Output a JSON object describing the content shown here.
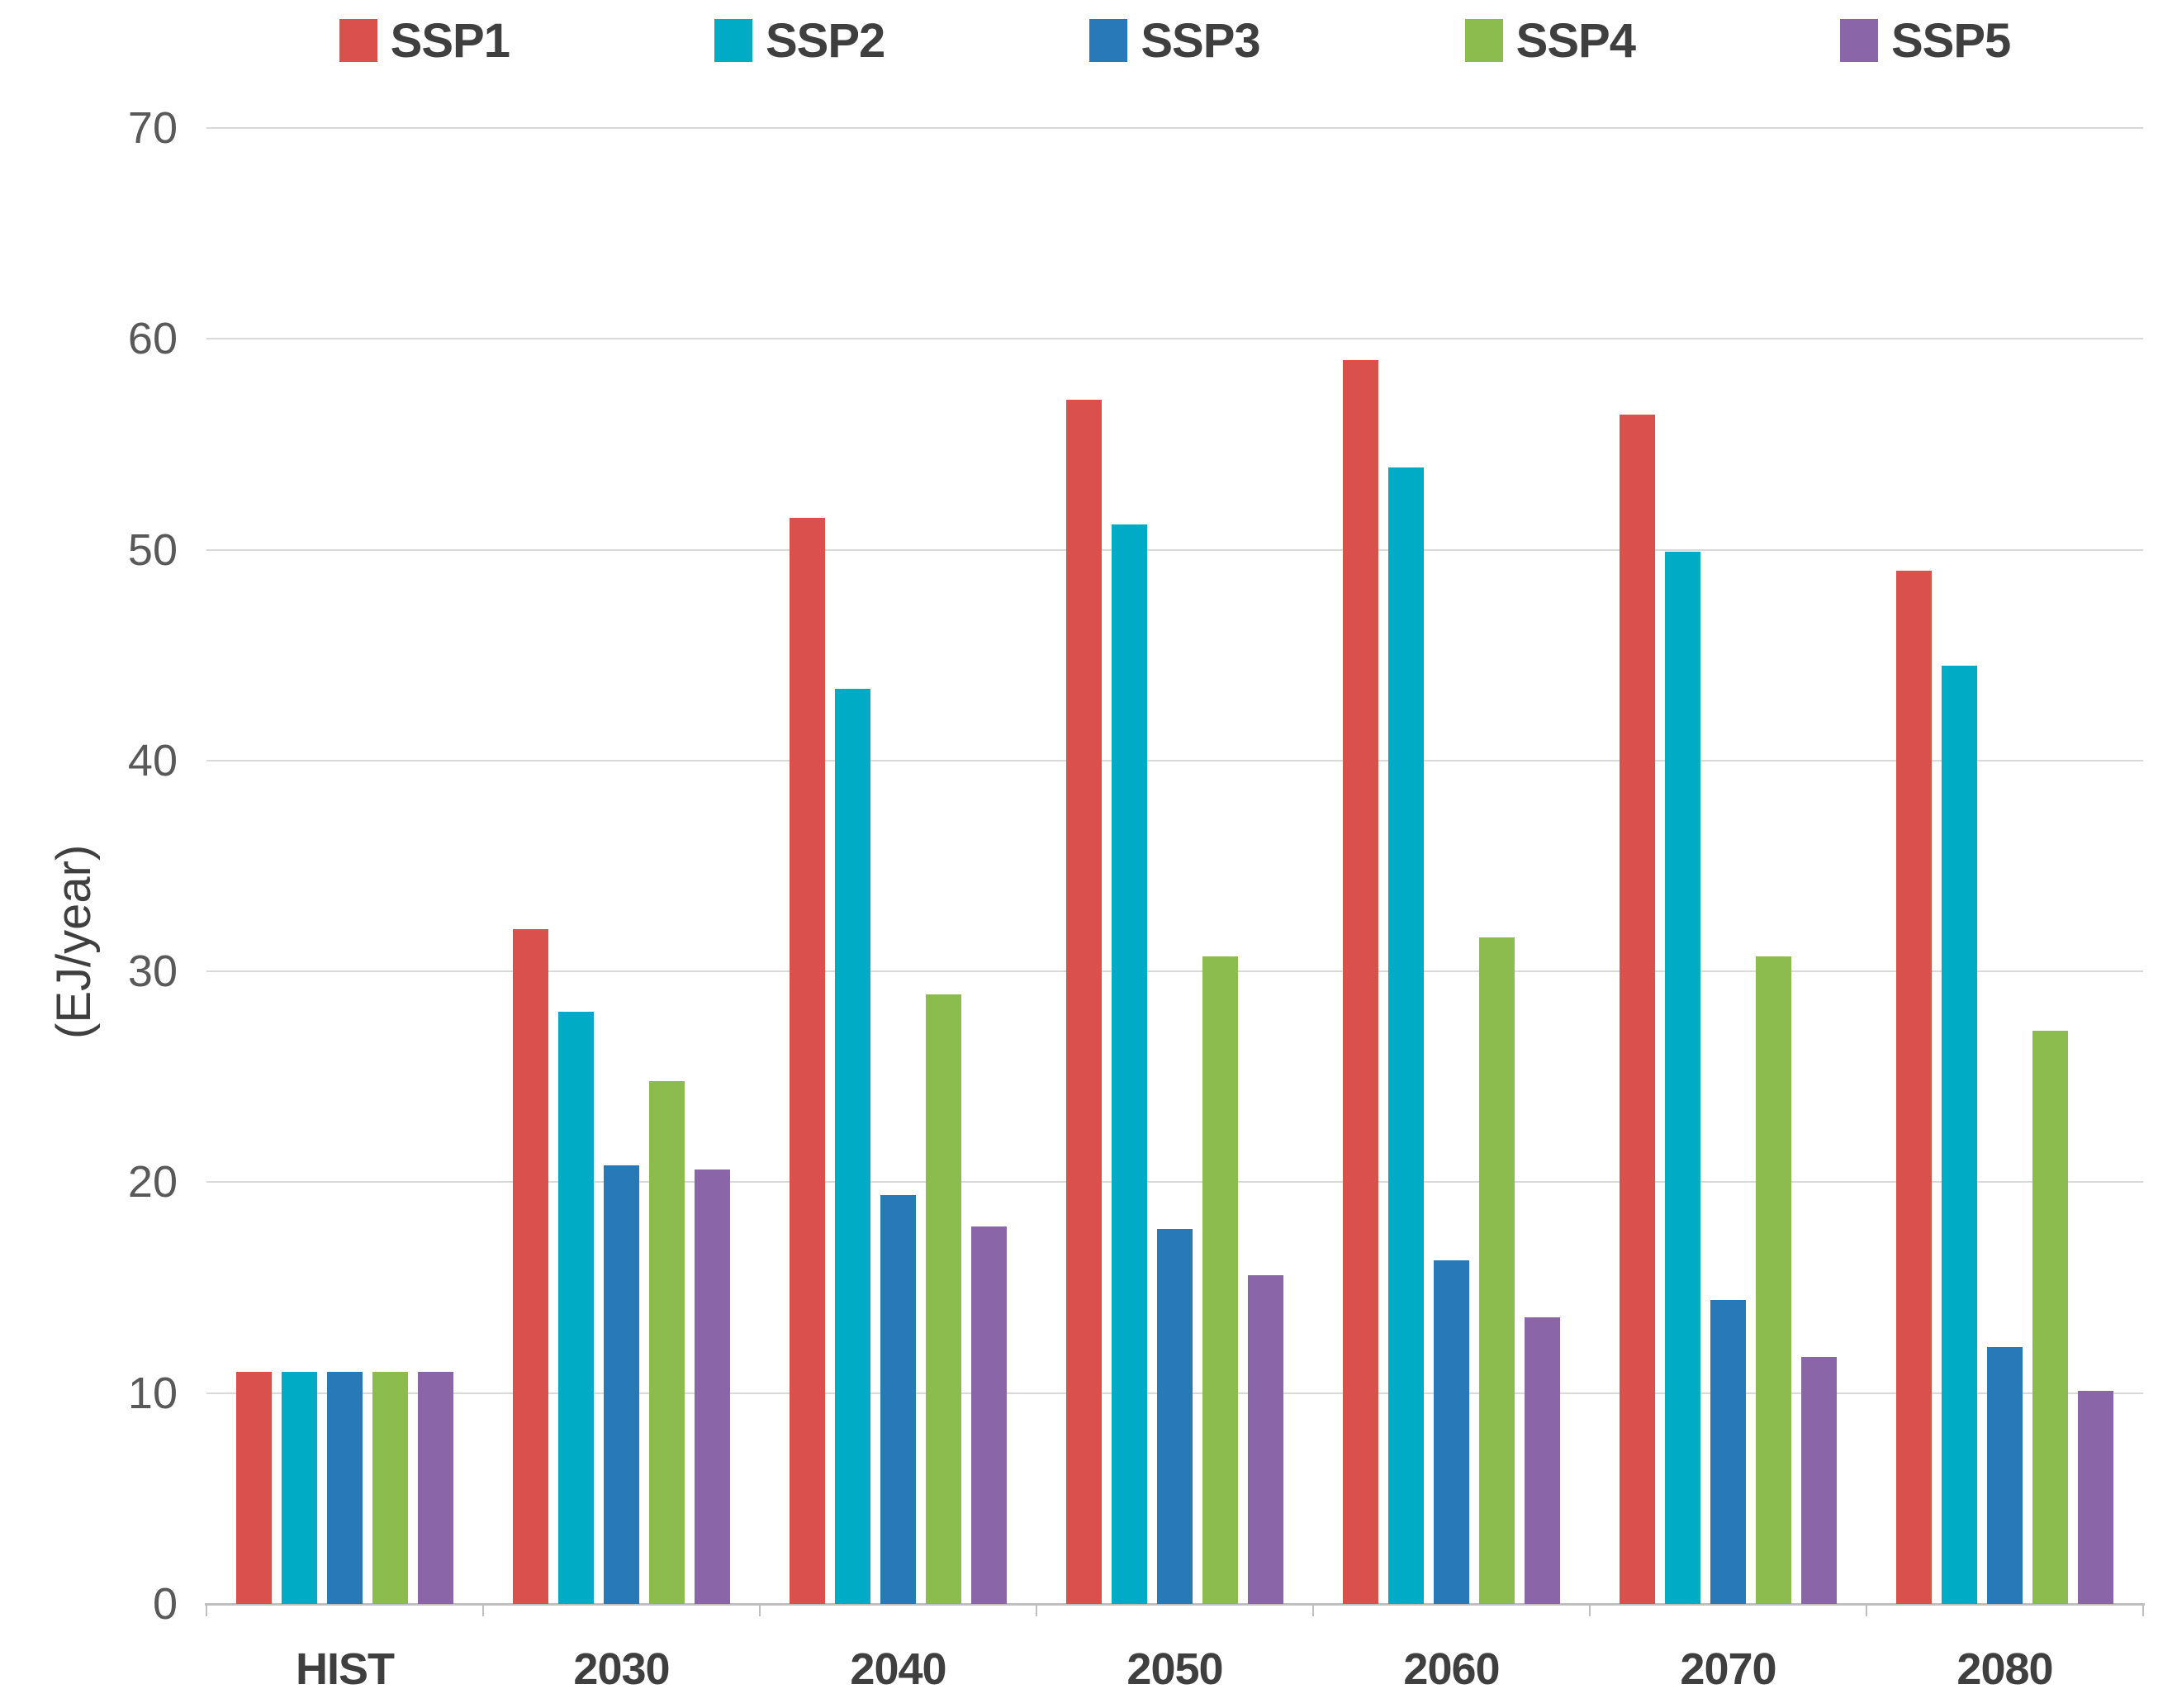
{
  "chart_data": {
    "type": "bar",
    "title": "",
    "xlabel": "",
    "ylabel": "(EJ/year)",
    "categories": [
      "HIST",
      "2030",
      "2040",
      "2050",
      "2060",
      "2070",
      "2080"
    ],
    "series": [
      {
        "name": "SSP1",
        "color": "#d9504c",
        "values": [
          11.0,
          32.0,
          51.5,
          57.1,
          59.0,
          56.4,
          49.0
        ]
      },
      {
        "name": "SSP2",
        "color": "#00abc5",
        "values": [
          11.0,
          28.1,
          43.4,
          51.2,
          53.9,
          49.9,
          44.5
        ]
      },
      {
        "name": "SSP3",
        "color": "#2879b8",
        "values": [
          11.0,
          20.8,
          19.4,
          17.8,
          16.3,
          14.4,
          12.2
        ]
      },
      {
        "name": "SSP4",
        "color": "#8cbb4e",
        "values": [
          11.0,
          24.8,
          28.9,
          30.7,
          31.6,
          30.7,
          27.2
        ]
      },
      {
        "name": "SSP5",
        "color": "#8a66a9",
        "values": [
          11.0,
          20.6,
          17.9,
          15.6,
          13.6,
          11.7,
          10.1
        ]
      }
    ],
    "ylim": [
      0,
      70
    ],
    "yticks": [
      0,
      10,
      20,
      30,
      40,
      50,
      60,
      70
    ],
    "grid": "horizontal",
    "gridline_color": "#d9d9d9",
    "axis_color": "#bfbfbf",
    "tick_text_color": "#595959",
    "label_text_color": "#3f3f3f",
    "legend_position": "top"
  }
}
